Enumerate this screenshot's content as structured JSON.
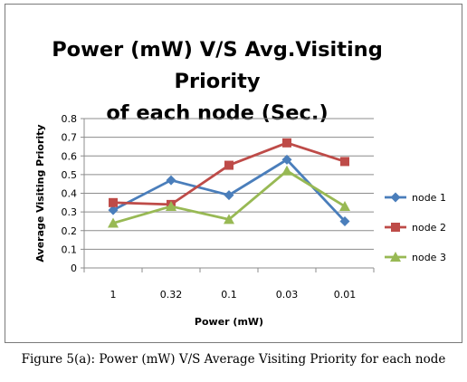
{
  "chart_data": {
    "type": "line",
    "title_line1": "Power (mW) V/S Avg.Visiting Priority",
    "title_line2": "of each node (Sec.)",
    "xlabel": "Power (mW)",
    "ylabel": "Average Visiting Priority",
    "categories": [
      "1",
      "0.32",
      "0.1",
      "0.03",
      "0.01"
    ],
    "ylim": [
      0,
      0.8
    ],
    "yticks": [
      "0",
      "0.1",
      "0.2",
      "0.3",
      "0.4",
      "0.5",
      "0.6",
      "0.7",
      "0.8"
    ],
    "grid": true,
    "legend_position": "right",
    "series": [
      {
        "name": "node 1",
        "values": [
          0.31,
          0.47,
          0.39,
          0.58,
          0.25
        ],
        "color": "#4a7ebb",
        "marker": "diamond"
      },
      {
        "name": "node 2",
        "values": [
          0.35,
          0.34,
          0.55,
          0.67,
          0.57
        ],
        "color": "#be4b48",
        "marker": "square"
      },
      {
        "name": "node 3",
        "values": [
          0.24,
          0.33,
          0.26,
          0.52,
          0.33
        ],
        "color": "#98b954",
        "marker": "triangle"
      }
    ]
  },
  "caption": "Figure 5(a): Power (mW) V/S Average Visiting Priority for each node"
}
